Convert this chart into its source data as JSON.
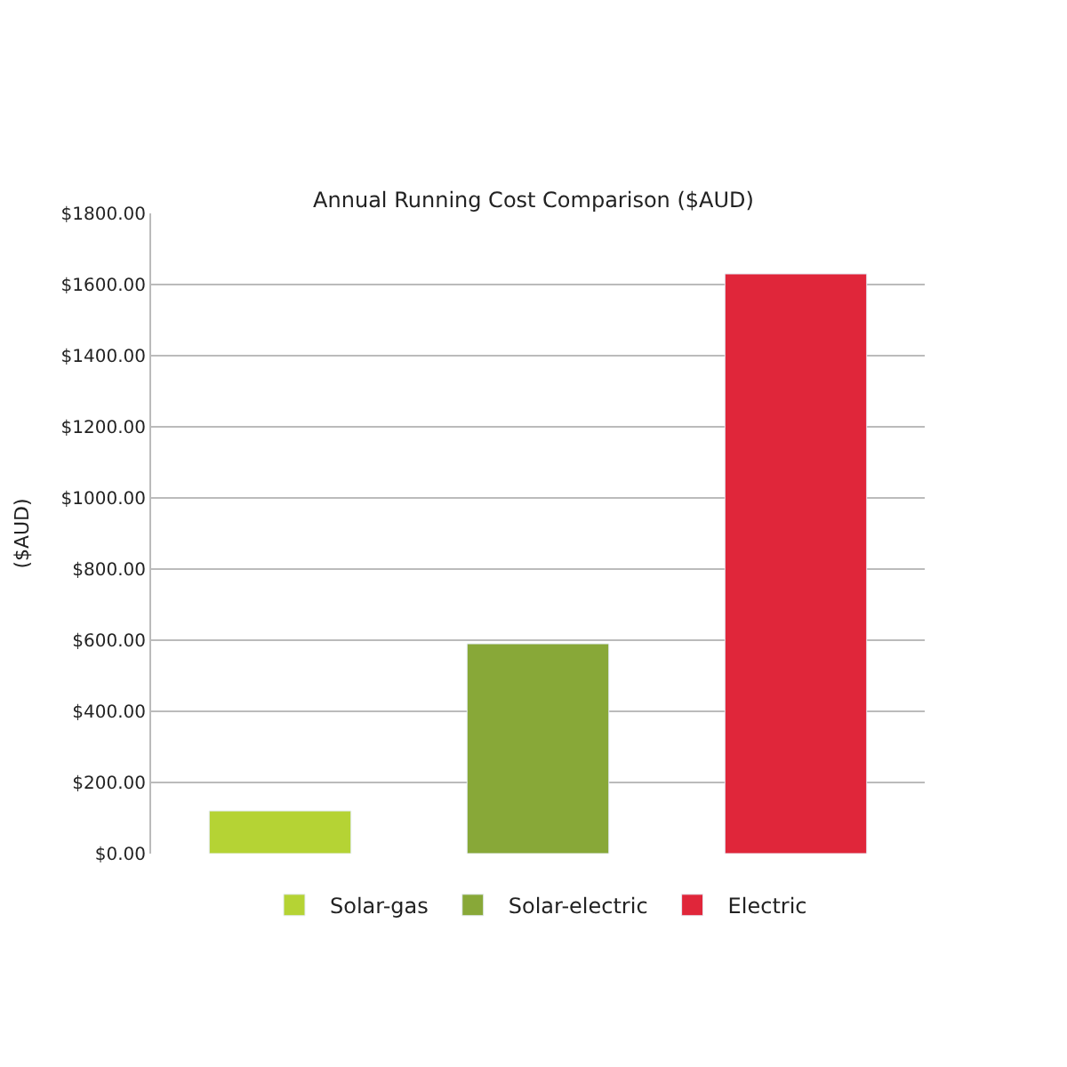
{
  "chart_data": {
    "type": "bar",
    "title": "Annual Running Cost Comparison ($AUD)",
    "ylabel": "($AUD)",
    "categories": [
      null,
      null,
      null
    ],
    "series": [
      {
        "name": "Solar-gas",
        "color": "#b5d334",
        "values": [
          120,
          null,
          null
        ]
      },
      {
        "name": "Solar-electric",
        "color": "#88a838",
        "values": [
          null,
          590,
          null
        ]
      },
      {
        "name": "Electric",
        "color": "#e0263a",
        "values": [
          null,
          null,
          1630
        ]
      }
    ],
    "ylim": [
      0,
      1800
    ],
    "yticks": [
      {
        "value": 0,
        "label": "$0.00"
      },
      {
        "value": 200,
        "label": "$200.00"
      },
      {
        "value": 400,
        "label": "$400.00"
      },
      {
        "value": 600,
        "label": "$600.00"
      },
      {
        "value": 800,
        "label": "$800.00"
      },
      {
        "value": 1000,
        "label": "$1000.00"
      },
      {
        "value": 1200,
        "label": "$1200.00"
      },
      {
        "value": 1400,
        "label": "$1400.00"
      },
      {
        "value": 1600,
        "label": "$1600.00"
      },
      {
        "value": 1800,
        "label": "$1800.00"
      }
    ],
    "grid": "y",
    "legend": "bottom"
  }
}
